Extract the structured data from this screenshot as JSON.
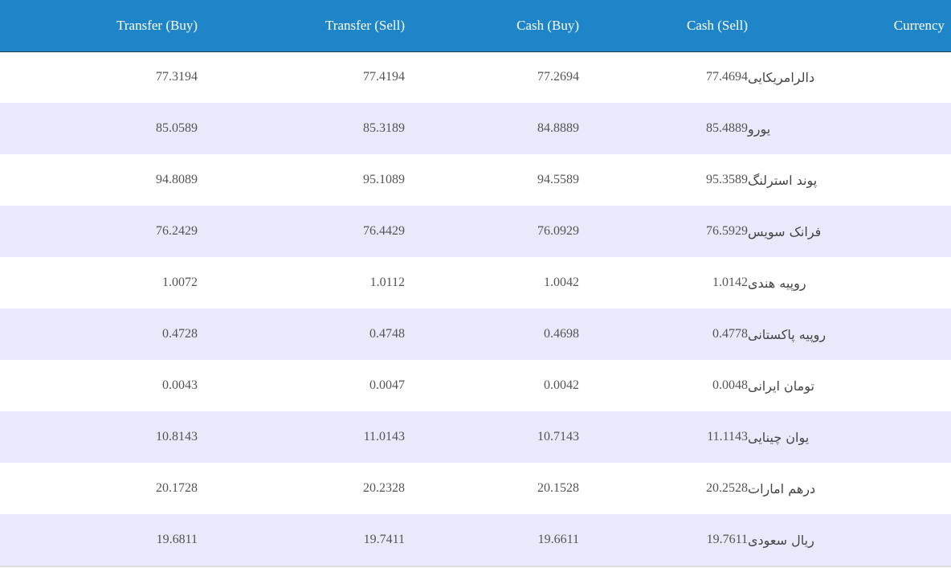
{
  "table": {
    "headers": {
      "transfer_buy": "Transfer (Buy)",
      "transfer_sell": "Transfer (Sell)",
      "cash_buy": "Cash (Buy)",
      "cash_sell": "Cash (Sell)",
      "currency": "Currency"
    },
    "rows": [
      {
        "transfer_buy": "77.3194",
        "transfer_sell": "77.4194",
        "cash_buy": "77.2694",
        "cash_sell": "77.4694",
        "currency": "دالرامریکایی"
      },
      {
        "transfer_buy": "85.0589",
        "transfer_sell": "85.3189",
        "cash_buy": "84.8889",
        "cash_sell": "85.4889",
        "currency": "یورو"
      },
      {
        "transfer_buy": "94.8089",
        "transfer_sell": "95.1089",
        "cash_buy": "94.5589",
        "cash_sell": "95.3589",
        "currency": "پوند استرلنگ"
      },
      {
        "transfer_buy": "76.2429",
        "transfer_sell": "76.4429",
        "cash_buy": "76.0929",
        "cash_sell": "76.5929",
        "currency": "فرانک سویس"
      },
      {
        "transfer_buy": "1.0072",
        "transfer_sell": "1.0112",
        "cash_buy": "1.0042",
        "cash_sell": "1.0142",
        "currency": "روپیه هندی"
      },
      {
        "transfer_buy": "0.4728",
        "transfer_sell": "0.4748",
        "cash_buy": "0.4698",
        "cash_sell": "0.4778",
        "currency": "روپیه پاکستانی"
      },
      {
        "transfer_buy": "0.0043",
        "transfer_sell": "0.0047",
        "cash_buy": "0.0042",
        "cash_sell": "0.0048",
        "currency": "تومان ایرانی"
      },
      {
        "transfer_buy": "10.8143",
        "transfer_sell": "11.0143",
        "cash_buy": "10.7143",
        "cash_sell": "11.1143",
        "currency": "یوان چینایی"
      },
      {
        "transfer_buy": "20.1728",
        "transfer_sell": "20.2328",
        "cash_buy": "20.1528",
        "cash_sell": "20.2528",
        "currency": "درهم امارات"
      },
      {
        "transfer_buy": "19.6811",
        "transfer_sell": "19.7411",
        "cash_buy": "19.6611",
        "cash_sell": "19.7611",
        "currency": "ریال سعودی"
      }
    ]
  },
  "colors": {
    "header_background": "#1e85c8",
    "header_text": "#ffffff",
    "row_alternate": "#e8e9fa",
    "row_default": "#ffffff",
    "cell_text": "#545454"
  }
}
